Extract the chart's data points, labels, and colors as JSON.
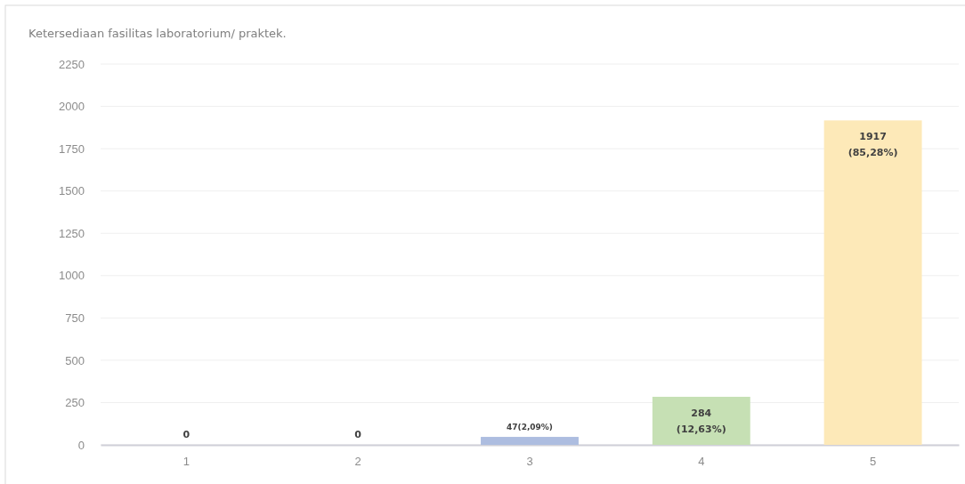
{
  "chart_data": {
    "type": "bar",
    "title": "Ketersediaan fasilitas laboratorium/ praktek.",
    "categories": [
      "1",
      "2",
      "3",
      "4",
      "5"
    ],
    "values": [
      0,
      0,
      47,
      284,
      1917
    ],
    "colors": [
      "#b4c3e4",
      "#b4c3e4",
      "#adbde0",
      "#c6e0b4",
      "#fde9b8"
    ],
    "value_labels": [
      "0",
      "0",
      "47(2,09%)",
      "284\n(12,63%)",
      "1917\n(85,28%)"
    ],
    "ylim": [
      0,
      2250
    ],
    "yticks": [
      0,
      250,
      500,
      750,
      1000,
      1250,
      1500,
      1750,
      2000,
      2250
    ],
    "grid": "y"
  }
}
